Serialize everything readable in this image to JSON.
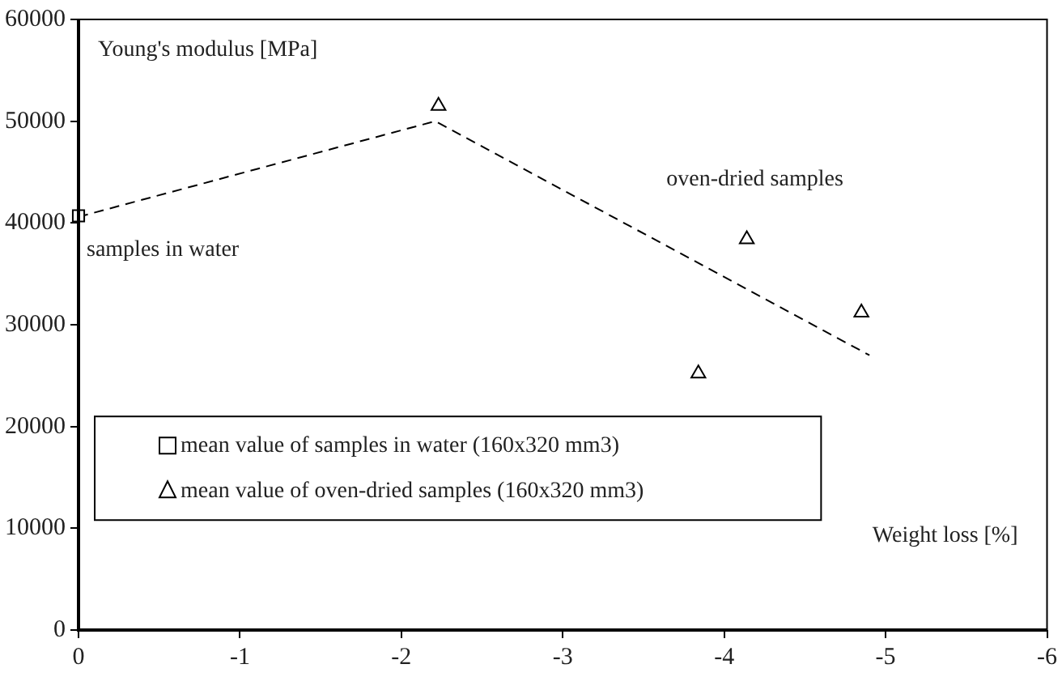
{
  "chart_data": {
    "type": "scatter",
    "xlabel": "Weight loss [%]",
    "ylabel": "Young's modulus [MPa]",
    "xlim": [
      0,
      -6
    ],
    "xticks": [
      0,
      -1,
      -2,
      -3,
      -4,
      -5,
      -6
    ],
    "ylim": [
      0,
      60000
    ],
    "yticks": [
      0,
      10000,
      20000,
      30000,
      40000,
      50000,
      60000
    ],
    "grid": false,
    "legend": "left",
    "series": [
      {
        "name": "mean value of samples in water (160x320 mm3)",
        "type": "scatter",
        "marker": "square",
        "color": "#000000",
        "x": [
          0
        ],
        "values": [
          40700
        ]
      },
      {
        "name": "mean value of oven-dried samples (160x320 mm3)",
        "type": "scatter",
        "marker": "triangle",
        "color": "#000000",
        "x": [
          -2.23,
          -3.84,
          -4.14,
          -4.85
        ],
        "values": [
          51500,
          25200,
          38400,
          31200
        ]
      },
      {
        "type": "line",
        "line_style": "dashed",
        "marker": "none",
        "color": "#000000",
        "x": [
          0,
          -2.21,
          -4.9
        ],
        "values": [
          40600,
          50000,
          27000
        ]
      }
    ],
    "annotations": [
      {
        "text": "samples in water",
        "x": 0,
        "y": 40700
      },
      {
        "text": "oven-dried samples",
        "x": -4.14,
        "y": 38400
      }
    ]
  }
}
